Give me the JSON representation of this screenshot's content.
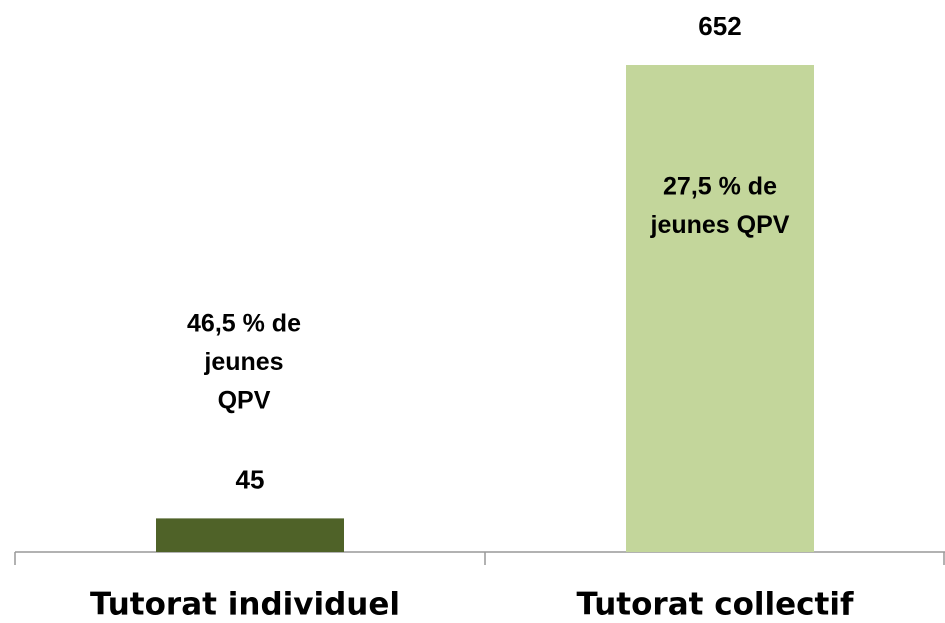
{
  "chart_data": {
    "type": "bar",
    "categories": [
      "Tutorat individuel",
      "Tutorat collectif"
    ],
    "values": [
      45,
      652
    ],
    "colors": [
      "#4f6228",
      "#c3d69b"
    ],
    "ylim": [
      0,
      652
    ],
    "annotations": [
      {
        "lines": [
          "46,5  % de",
          "jeunes",
          "QPV"
        ]
      },
      {
        "lines": [
          "27,5  % de",
          "jeunes QPV"
        ]
      }
    ]
  }
}
